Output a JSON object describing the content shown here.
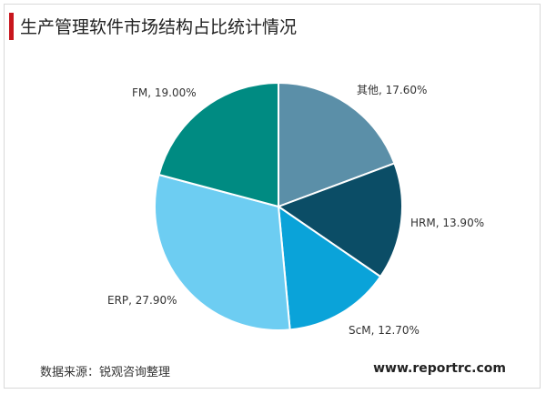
{
  "title": "生产管理软件市场结构占比统计情况",
  "source": "数据来源：锐观咨询整理",
  "website": "www.reportrc.com",
  "chart_data": {
    "type": "pie",
    "title": "生产管理软件市场结构占比统计情况",
    "slices": [
      {
        "name": "其他",
        "value": 17.6,
        "label": "其他, 17.60%",
        "color": "#5b8fa8"
      },
      {
        "name": "HRM",
        "value": 13.9,
        "label": "HRM, 13.90%",
        "color": "#0b4d66"
      },
      {
        "name": "ScM",
        "value": 12.7,
        "label": "ScM, 12.70%",
        "color": "#0aa3d9"
      },
      {
        "name": "ERP",
        "value": 27.9,
        "label": "ERP, 27.90%",
        "color": "#6dcdf2"
      },
      {
        "name": "FM",
        "value": 19.0,
        "label": "FM, 19.00%",
        "color": "#008b82"
      }
    ],
    "start_angle_deg": 0,
    "direction": "clockwise",
    "legend": "none"
  }
}
